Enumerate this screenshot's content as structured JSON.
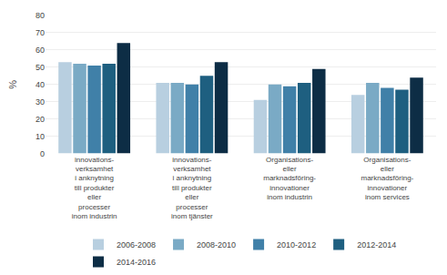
{
  "chart_data": {
    "type": "bar",
    "ylabel": "%",
    "categories": [
      "innovations-\nverksamhet\ni anknytning\ntill produkter\neller\nprocesser\ninom industrin",
      "innovations-\nverksamhet\ni anknytning\ntill produkter\neller\nprocesser\ninom tjänster",
      "Organisations-\neller\nmarknadsföring-\ninnovationer\ninom industrin",
      "Organisations-\neller\nmarknadsföring-\ninnovationer\ninom services"
    ],
    "series": [
      {
        "name": "2006-2008",
        "color": "#b8cfe0",
        "values": [
          53,
          41,
          31,
          34
        ]
      },
      {
        "name": "2008-2010",
        "color": "#7aaac5",
        "values": [
          52,
          41,
          40,
          41
        ]
      },
      {
        "name": "2010-2012",
        "color": "#4080a8",
        "values": [
          51,
          40,
          39,
          38
        ]
      },
      {
        "name": "2012-2014",
        "color": "#1e5f80",
        "values": [
          52,
          45,
          41,
          37
        ]
      },
      {
        "name": "2014-2016",
        "color": "#0d2d45",
        "values": [
          64,
          53,
          49,
          44
        ]
      }
    ],
    "ylim": [
      0,
      80
    ],
    "yticks": [
      0,
      10,
      20,
      30,
      40,
      50,
      60,
      70,
      80
    ],
    "grid": true,
    "legend": "bottom"
  }
}
